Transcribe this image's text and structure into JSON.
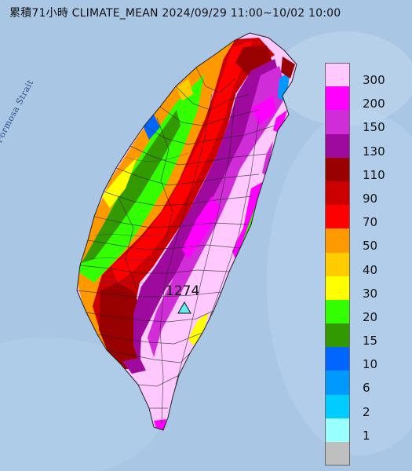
{
  "title": "累積71小時 CLIMATE_MEAN 2024/09/29 11:00~10/02 10:00",
  "strait_label": "Formosa Strait",
  "max_value": "1274",
  "legend": {
    "levels": [
      {
        "label": "300",
        "color": "#ffc8ff"
      },
      {
        "label": "200",
        "color": "#ff00ff"
      },
      {
        "label": "150",
        "color": "#d02cd8"
      },
      {
        "label": "130",
        "color": "#9e0a9e"
      },
      {
        "label": "110",
        "color": "#990000"
      },
      {
        "label": "90",
        "color": "#cc0000"
      },
      {
        "label": "70",
        "color": "#ff0000"
      },
      {
        "label": "50",
        "color": "#ff9900"
      },
      {
        "label": "40",
        "color": "#ffcc00"
      },
      {
        "label": "30",
        "color": "#ffff00"
      },
      {
        "label": "20",
        "color": "#33ff00"
      },
      {
        "label": "15",
        "color": "#339900"
      },
      {
        "label": "10",
        "color": "#0066ff"
      },
      {
        "label": "6",
        "color": "#0099ff"
      },
      {
        "label": "2",
        "color": "#00ccff"
      },
      {
        "label": "1",
        "color": "#99ffff"
      },
      {
        "label": "",
        "color": "#bfbfbf"
      }
    ]
  }
}
